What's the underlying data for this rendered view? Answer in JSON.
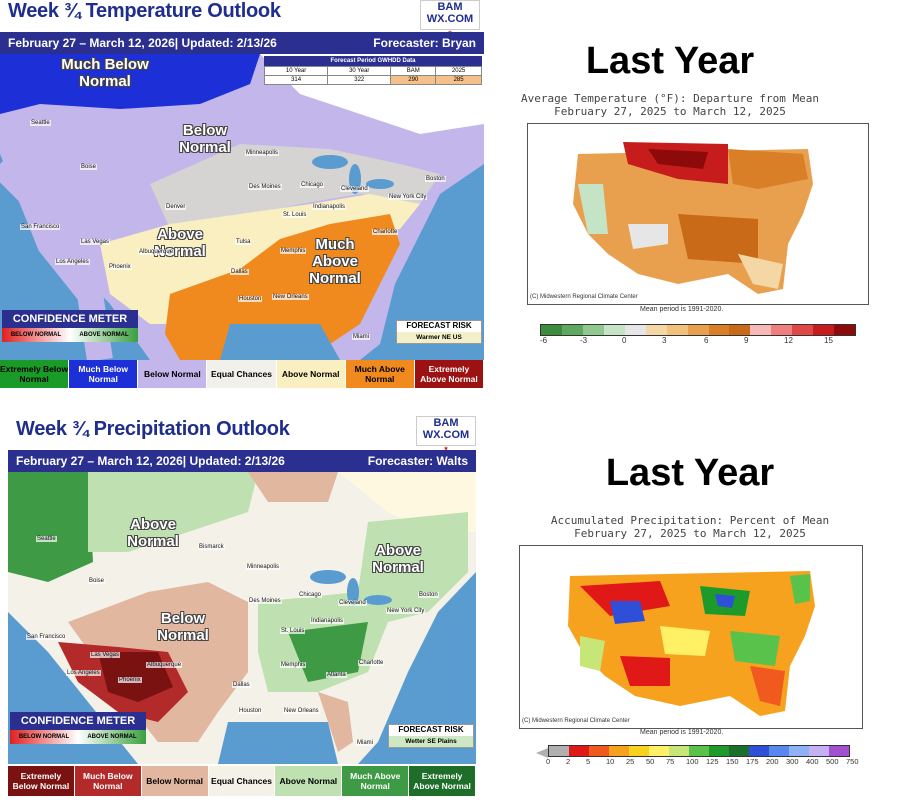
{
  "temp": {
    "title": "Week ¾ Temperature Outlook",
    "logo": "BAM WX.COM",
    "bar_left": "February 27 – March 12, 2026| Updated: 2/13/26",
    "bar_right": "Forecaster: Bryan",
    "gwhdd": {
      "header": "Forecast Period GWHDD Data",
      "cols": [
        "10 Year",
        "30 Year",
        "BAM",
        "2025"
      ],
      "vals": [
        "314",
        "322",
        "290",
        "285"
      ]
    },
    "labels": {
      "much_below": "Much Below Normal",
      "below": "Below Normal",
      "above": "Above Normal",
      "much_above": "Much Above Normal"
    },
    "cities": [
      "Seattle",
      "Boise",
      "San Francisco",
      "Las Vegas",
      "Los Angeles",
      "Phoenix",
      "Denver",
      "Albuquerque",
      "Minneapolis",
      "Des Moines",
      "Chicago",
      "Cleveland",
      "Boston",
      "New York City",
      "Indianapolis",
      "St. Louis",
      "Memphis",
      "Tulsa",
      "Dallas",
      "Houston",
      "New Orleans",
      "Charlotte",
      "Miami"
    ],
    "confidence": {
      "title": "CONFIDENCE METER",
      "left": "BELOW NORMAL",
      "right": "ABOVE NORMAL"
    },
    "risk": {
      "title": "FORECAST RISK",
      "value": "Warmer NE US"
    },
    "legend": [
      "Extremely Below Normal",
      "Much Below Normal",
      "Below Normal",
      "Equal Chances",
      "Above Normal",
      "Much Above Normal",
      "Extremely Above Normal"
    ],
    "legend_colors": [
      "#1a9a27",
      "#1d2fd6",
      "#c2b6ea",
      "#f2f0ea",
      "#f9efc0",
      "#f08a1e",
      "#9c1212"
    ]
  },
  "ly_temp": {
    "heading": "Last Year",
    "sub1": "Average Temperature (°F): Departure from Mean",
    "sub2": "February 27, 2025 to March 12, 2025",
    "credit": "(C) Midwestern Regional Climate Center",
    "mean": "Mean period is 1991-2020.",
    "ticks": [
      "-6",
      "-3",
      "0",
      "3",
      "6",
      "9",
      "12",
      "15"
    ],
    "colors": [
      "#3d8b3d",
      "#5fa85f",
      "#8fc98f",
      "#c5e3c5",
      "#e6e6e6",
      "#f5d7a6",
      "#f2c27a",
      "#e8a04e",
      "#d97f28",
      "#c96a18",
      "#f7b8b8",
      "#f08080",
      "#e04848",
      "#c61c1c",
      "#8c0a0a"
    ]
  },
  "precip": {
    "title": "Week ¾ Precipitation Outlook",
    "logo": "BAM WX.COM",
    "bar_left": "February 27 – March 12, 2026| Updated: 2/13/26",
    "bar_right": "Forecaster: Walts",
    "labels": {
      "above_w": "Above Normal",
      "above_e": "Above Normal",
      "below": "Below Normal"
    },
    "cities": [
      "Seattle",
      "Bismarck",
      "Boise",
      "San Francisco",
      "Las Vegas",
      "Los Angeles",
      "Phoenix",
      "Albuquerque",
      "Minneapolis",
      "Des Moines",
      "Chicago",
      "Cleveland",
      "Boston",
      "New York City",
      "Indianapolis",
      "St. Louis",
      "Memphis",
      "Dallas",
      "Houston",
      "New Orleans",
      "Atlanta",
      "Charlotte",
      "Miami"
    ],
    "confidence": {
      "title": "CONFIDENCE METER",
      "left": "BELOW NORMAL",
      "right": "ABOVE NORMAL"
    },
    "risk": {
      "title": "FORECAST RISK",
      "value": "Wetter SE Plains"
    },
    "legend": [
      "Extremely Below Normal",
      "Much Below Normal",
      "Below Normal",
      "Equal Chances",
      "Above Normal",
      "Much Above Normal",
      "Extremely Above Normal"
    ],
    "legend_colors": [
      "#7a1212",
      "#b22a2a",
      "#e2b7a0",
      "#f4f1e8",
      "#bfe0b0",
      "#3e9a44",
      "#1e6e2a"
    ]
  },
  "ly_precip": {
    "heading": "Last Year",
    "sub1": "Accumulated Precipitation: Percent of Mean",
    "sub2": "February 27, 2025 to March 12, 2025",
    "credit": "(C) Midwestern Regional Climate Center",
    "mean": "Mean period is 1991-2020.",
    "ticks": [
      "0",
      "2",
      "5",
      "10",
      "25",
      "50",
      "75",
      "100",
      "125",
      "150",
      "175",
      "200",
      "300",
      "400",
      "500",
      "750"
    ],
    "colors": [
      "#b0b0b0",
      "#e01818",
      "#f05a1e",
      "#f7a21e",
      "#f7d21e",
      "#fff066",
      "#c8e678",
      "#58c24a",
      "#1e9a2a",
      "#1a6f2a",
      "#2f4fd8",
      "#5a86f0",
      "#8fb2f7",
      "#c4b0f2",
      "#a050d0"
    ]
  }
}
